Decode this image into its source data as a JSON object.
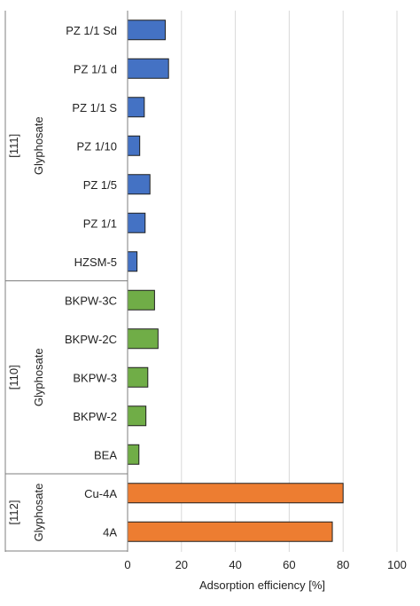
{
  "chart_data": {
    "type": "bar",
    "orientation": "horizontal",
    "xlabel": "Adsorption efficiency [%]",
    "xlim": [
      0,
      100
    ],
    "xticks": [
      0,
      20,
      40,
      60,
      80,
      100
    ],
    "grid": "vertical",
    "groups": [
      {
        "ref": "[111]",
        "name": "Glyphosate",
        "color": "#4472c4",
        "categories": [
          "PZ 1/1 Sd",
          "PZ 1/1 d",
          "PZ 1/1 S",
          "PZ 1/10",
          "PZ 1/5",
          "PZ 1/1",
          "HZSM-5"
        ],
        "values": [
          14,
          15.2,
          6.2,
          4.5,
          8.3,
          6.5,
          3.5
        ]
      },
      {
        "ref": "[110]",
        "name": "Glyphosate",
        "color": "#70ad47",
        "categories": [
          "BKPW-3C",
          "BKPW-2C",
          "BKPW-3",
          "BKPW-2",
          "BEA"
        ],
        "values": [
          10,
          11.3,
          7.5,
          6.8,
          4.2
        ]
      },
      {
        "ref": "[112]",
        "name": "Glyphosate",
        "color": "#ed7d31",
        "categories": [
          "Cu-4A",
          "4A"
        ],
        "values": [
          80,
          76
        ]
      }
    ]
  }
}
